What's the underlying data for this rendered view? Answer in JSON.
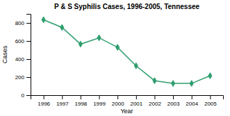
{
  "chart_data": {
    "type": "line",
    "title": "P & S Syphilis Cases, 1996-2005, Tennessee",
    "xlabel": "Year",
    "ylabel": "Cases",
    "x": [
      1996,
      1997,
      1998,
      1999,
      2000,
      2001,
      2002,
      2003,
      2004,
      2005
    ],
    "values": [
      835,
      750,
      565,
      635,
      530,
      325,
      160,
      130,
      130,
      215
    ],
    "color": "#2e9e6e",
    "marker": "diamond",
    "xlim": [
      1995.3,
      2005.7
    ],
    "xticks": [
      1996,
      1997,
      1998,
      1999,
      2000,
      2001,
      2002,
      2003,
      2004,
      2005
    ],
    "ylim": [
      0,
      900
    ],
    "yticks": [
      0,
      200,
      400,
      600,
      800
    ]
  }
}
